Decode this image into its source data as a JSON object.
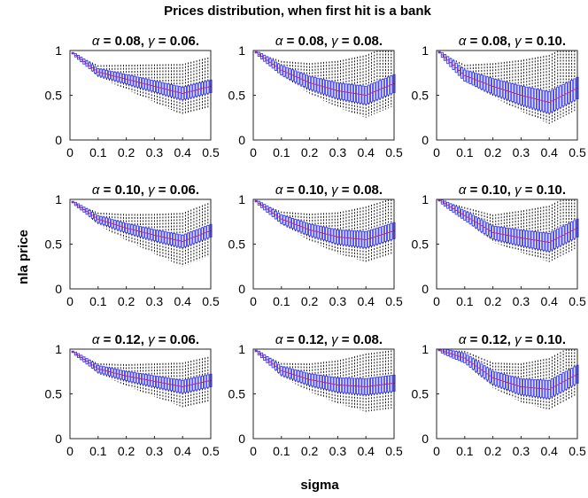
{
  "chart_data": {
    "type": "box",
    "title": "Prices distribution, when first hit is a bank",
    "xlabel": "sigma",
    "ylabel": "nla price",
    "xlim": [
      0,
      0.5
    ],
    "ylim": [
      0,
      1
    ],
    "x_ticks": [
      "0",
      "0.1",
      "0.2",
      "0.3",
      "0.4",
      "0.5"
    ],
    "y_ticks": [
      "0",
      "0.5",
      "1"
    ],
    "x": [
      0.01,
      0.02,
      0.03,
      0.04,
      0.05,
      0.06,
      0.07,
      0.08,
      0.09,
      0.1,
      0.11,
      0.12,
      0.13,
      0.14,
      0.15,
      0.16,
      0.17,
      0.18,
      0.19,
      0.2,
      0.21,
      0.22,
      0.23,
      0.24,
      0.25,
      0.26,
      0.27,
      0.28,
      0.29,
      0.3,
      0.31,
      0.32,
      0.33,
      0.34,
      0.35,
      0.36,
      0.37,
      0.38,
      0.39,
      0.4,
      0.41,
      0.42,
      0.43,
      0.44,
      0.45,
      0.46,
      0.47,
      0.48,
      0.49,
      0.5
    ],
    "colors": {
      "box": "#3a3aff",
      "median": "#ff0000",
      "whisker": "#000000"
    },
    "subplots": [
      {
        "alpha_label": "α",
        "gamma_label": "γ",
        "title_values": "= 0.08,   = 0.06.",
        "alpha": "0.08",
        "gamma": "0.06",
        "median_at_x": {
          "0.01": 0.97,
          "0.1": 0.76,
          "0.2": 0.68,
          "0.3": 0.6,
          "0.4": 0.52,
          "0.5": 0.6
        },
        "iqr_halfwidth": 0.07,
        "whisker_low_at_0.4": 0.28,
        "whisker_high_at_0.4": 0.85
      },
      {
        "alpha_label": "α",
        "gamma_label": "γ",
        "title_values": "= 0.08,   = 0.08.",
        "alpha": "0.08",
        "gamma": "0.08",
        "median_at_x": {
          "0.01": 0.98,
          "0.1": 0.78,
          "0.2": 0.64,
          "0.3": 0.55,
          "0.4": 0.5,
          "0.5": 0.63
        },
        "iqr_halfwidth": 0.1,
        "whisker_low_at_0.4": 0.25,
        "whisker_high_at_0.4": 0.95
      },
      {
        "alpha_label": "α",
        "gamma_label": "γ",
        "title_values": "= 0.08,   = 0.10.",
        "alpha": "0.08",
        "gamma": "0.10",
        "median_at_x": {
          "0.01": 0.98,
          "0.1": 0.72,
          "0.2": 0.6,
          "0.3": 0.5,
          "0.4": 0.42,
          "0.5": 0.58
        },
        "iqr_halfwidth": 0.12,
        "whisker_low_at_0.4": 0.18,
        "whisker_high_at_0.4": 0.95
      },
      {
        "alpha_label": "α",
        "gamma_label": "γ",
        "title_values": "= 0.10,   = 0.06.",
        "alpha": "0.10",
        "gamma": "0.06",
        "median_at_x": {
          "0.01": 0.97,
          "0.1": 0.78,
          "0.2": 0.68,
          "0.3": 0.6,
          "0.4": 0.53,
          "0.5": 0.65
        },
        "iqr_halfwidth": 0.07,
        "whisker_low_at_0.4": 0.25,
        "whisker_high_at_0.4": 0.85
      },
      {
        "alpha_label": "α",
        "gamma_label": "γ",
        "title_values": "= 0.10,   = 0.08.",
        "alpha": "0.10",
        "gamma": "0.08",
        "median_at_x": {
          "0.01": 0.98,
          "0.1": 0.78,
          "0.2": 0.66,
          "0.3": 0.58,
          "0.4": 0.55,
          "0.5": 0.65
        },
        "iqr_halfwidth": 0.09,
        "whisker_low_at_0.4": 0.3,
        "whisker_high_at_0.4": 0.92
      },
      {
        "alpha_label": "α",
        "gamma_label": "γ",
        "title_values": "= 0.10,   = 0.10.",
        "alpha": "0.10",
        "gamma": "0.10",
        "median_at_x": {
          "0.01": 0.99,
          "0.1": 0.82,
          "0.2": 0.63,
          "0.3": 0.57,
          "0.4": 0.52,
          "0.5": 0.68
        },
        "iqr_halfwidth": 0.1,
        "whisker_low_at_0.4": 0.3,
        "whisker_high_at_0.4": 0.93
      },
      {
        "alpha_label": "α",
        "gamma_label": "γ",
        "title_values": "= 0.12,   = 0.06.",
        "alpha": "0.12",
        "gamma": "0.06",
        "median_at_x": {
          "0.01": 0.97,
          "0.1": 0.78,
          "0.2": 0.7,
          "0.3": 0.64,
          "0.4": 0.58,
          "0.5": 0.65
        },
        "iqr_halfwidth": 0.07,
        "whisker_low_at_0.4": 0.35,
        "whisker_high_at_0.4": 0.85
      },
      {
        "alpha_label": "α",
        "gamma_label": "γ",
        "title_values": "= 0.12,   = 0.08.",
        "alpha": "0.12",
        "gamma": "0.08",
        "median_at_x": {
          "0.01": 0.98,
          "0.1": 0.76,
          "0.2": 0.66,
          "0.3": 0.6,
          "0.4": 0.58,
          "0.5": 0.62
        },
        "iqr_halfwidth": 0.09,
        "whisker_low_at_0.4": 0.3,
        "whisker_high_at_0.4": 0.95
      },
      {
        "alpha_label": "α",
        "gamma_label": "γ",
        "title_values": "= 0.12,   = 0.10.",
        "alpha": "0.12",
        "gamma": "0.10",
        "median_at_x": {
          "0.01": 0.99,
          "0.1": 0.9,
          "0.2": 0.68,
          "0.3": 0.58,
          "0.4": 0.55,
          "0.5": 0.72
        },
        "iqr_halfwidth": 0.1,
        "whisker_low_at_0.4": 0.32,
        "whisker_high_at_0.4": 0.9
      }
    ]
  }
}
